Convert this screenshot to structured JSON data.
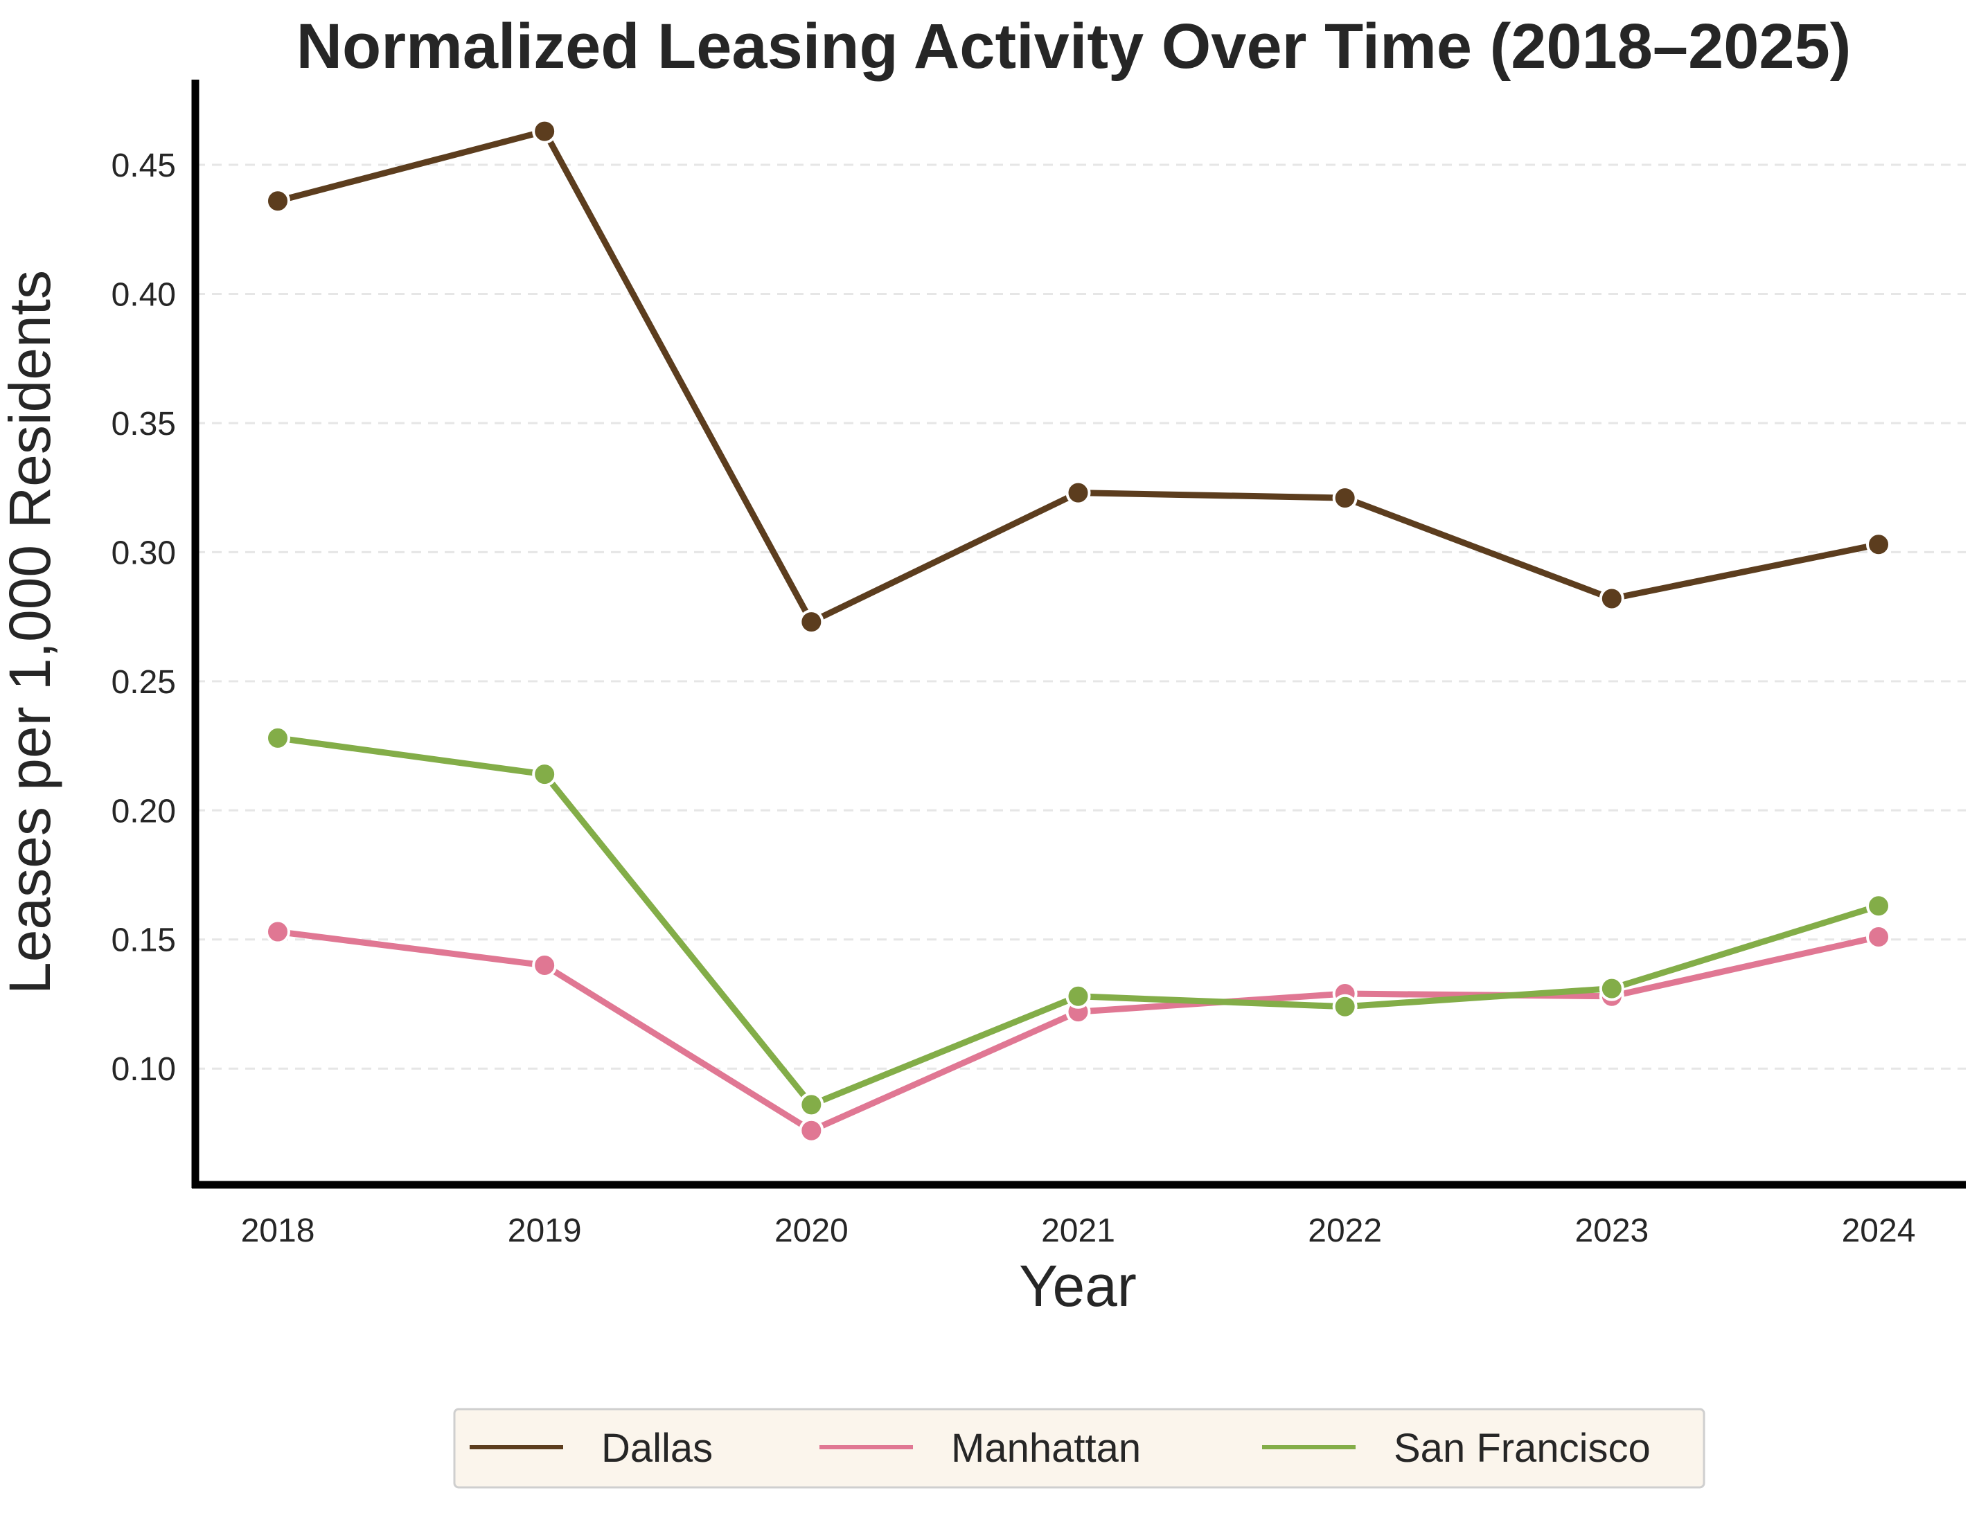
{
  "chart_data": {
    "type": "line",
    "title": "Normalized Leasing Activity Over Time (2018–2025)",
    "xlabel": "Year",
    "ylabel": "Leases per 1,000 Residents",
    "categories": [
      "2018",
      "2019",
      "2020",
      "2021",
      "2022",
      "2023",
      "2024"
    ],
    "x_ticks": [
      "2018",
      "2019",
      "2020",
      "2021",
      "2022",
      "2023",
      "2024"
    ],
    "y_ticks": [
      "0.10",
      "0.15",
      "0.20",
      "0.25",
      "0.30",
      "0.35",
      "0.40",
      "0.45"
    ],
    "ylim": [
      0.055,
      0.483
    ],
    "grid": "horizontal dashed",
    "legend_position": "bottom-center",
    "series": [
      {
        "name": "Dallas",
        "color": "#5c3d1e",
        "values": [
          0.436,
          0.463,
          0.273,
          0.323,
          0.321,
          0.282,
          0.303
        ]
      },
      {
        "name": "Manhattan",
        "color": "#e07793",
        "values": [
          0.153,
          0.14,
          0.076,
          0.122,
          0.129,
          0.128,
          0.151
        ]
      },
      {
        "name": "San Francisco",
        "color": "#83ad48",
        "values": [
          0.228,
          0.214,
          0.086,
          0.128,
          0.124,
          0.131,
          0.163
        ]
      }
    ]
  }
}
